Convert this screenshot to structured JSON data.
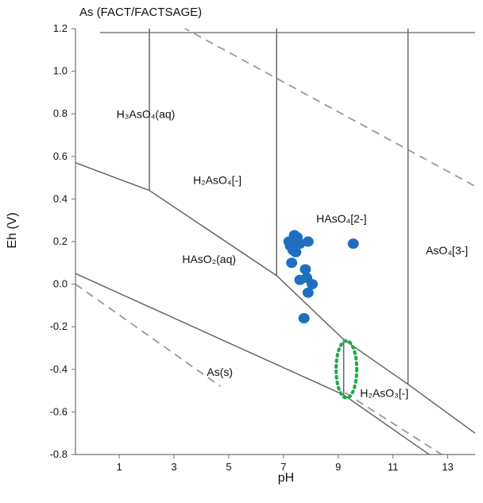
{
  "chart_data": {
    "type": "scatter",
    "title": "As (FACT/FACTSAGE)",
    "xlabel": "pH",
    "ylabel": "Eh (V)",
    "xlim": [
      -0.6,
      14.0
    ],
    "ylim": [
      -0.8,
      1.2
    ],
    "x_ticks": [
      1,
      3,
      5,
      7,
      9,
      11,
      13
    ],
    "y_ticks": [
      1.2,
      1.0,
      0.8,
      0.6,
      0.4,
      0.2,
      0.0,
      -0.2,
      -0.4,
      -0.6,
      -0.8
    ],
    "grid": false,
    "colors": {
      "points": "#1f6fc1",
      "boundary_lines": "#666666",
      "dashed_lines": "#999999",
      "highlight_ellipse": "#1fa84a"
    },
    "regions": [
      {
        "label": "H₃AsO₄(aq)",
        "x": 0.9,
        "y": 0.78
      },
      {
        "label": "H₂AsO₄[-]",
        "x": 3.7,
        "y": 0.47
      },
      {
        "label": "HAsO₄[2-]",
        "x": 8.2,
        "y": 0.29
      },
      {
        "label": "HAsO₂(aq)",
        "x": 3.3,
        "y": 0.1
      },
      {
        "label": "AsO₄[3-]",
        "x": 12.2,
        "y": 0.14
      },
      {
        "label": "As(s)",
        "x": 4.2,
        "y": -0.43
      },
      {
        "label": "H₂AsO₃[-]",
        "x": 9.8,
        "y": -0.53
      }
    ],
    "series": [
      {
        "points": [
          [
            7.4,
            0.23
          ],
          [
            7.5,
            0.22
          ],
          [
            7.2,
            0.2
          ],
          [
            7.6,
            0.19
          ],
          [
            7.9,
            0.2
          ],
          [
            7.25,
            0.18
          ],
          [
            7.35,
            0.16
          ],
          [
            7.45,
            0.15
          ],
          [
            7.3,
            0.1
          ],
          [
            7.8,
            0.07
          ],
          [
            7.6,
            0.02
          ],
          [
            7.85,
            0.03
          ],
          [
            8.05,
            0.0
          ],
          [
            7.9,
            -0.04
          ],
          [
            7.75,
            -0.16
          ],
          [
            9.55,
            0.19
          ]
        ]
      }
    ]
  }
}
